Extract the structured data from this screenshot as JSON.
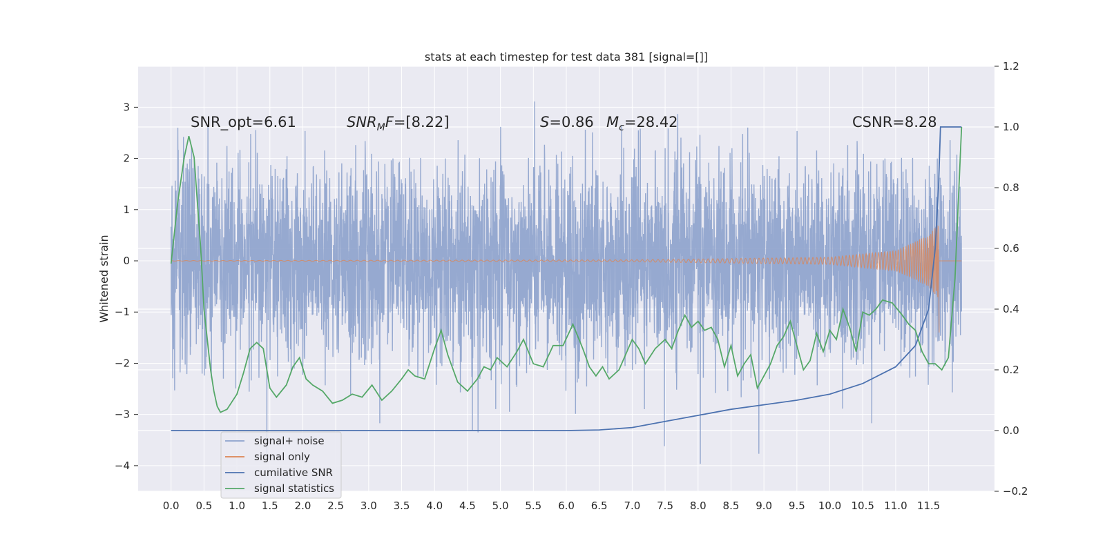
{
  "chart_data": {
    "type": "line",
    "title": "stats at each timestep for test data 381 [signal=[]]",
    "ylabel": "Whitened strain",
    "xlim": [
      -0.5,
      12.5
    ],
    "ylim": [
      -4.5,
      3.8
    ],
    "y2lim": [
      -0.2,
      1.2
    ],
    "x_ticks": [
      0.0,
      0.5,
      1.0,
      1.5,
      2.0,
      2.5,
      3.0,
      3.5,
      4.0,
      4.5,
      5.0,
      5.5,
      6.0,
      6.5,
      7.0,
      7.5,
      8.0,
      8.5,
      9.0,
      9.5,
      10.0,
      10.5,
      11.0,
      11.5
    ],
    "x_tick_labels": [
      "0.0",
      "0.5",
      "1.0",
      "1.5",
      "2.0",
      "2.5",
      "3.0",
      "3.5",
      "4.0",
      "4.5",
      "5.0",
      "5.5",
      "6.0",
      "6.5",
      "7.0",
      "7.5",
      "8.0",
      "8.5",
      "9.0",
      "9.5",
      "10.0",
      "10.5",
      "11.0",
      "11.5"
    ],
    "y_ticks": [
      3,
      2,
      1,
      0,
      -1,
      -2,
      -3,
      -4
    ],
    "y_tick_labels": [
      "3",
      "2",
      "1",
      "0",
      "−1",
      "−2",
      "−3",
      "−4"
    ],
    "y2_ticks": [
      1.2,
      1.0,
      0.8,
      0.6,
      0.4,
      0.2,
      0.0,
      -0.2
    ],
    "y2_tick_labels": [
      "1.2",
      "1.0",
      "0.8",
      "0.6",
      "0.4",
      "0.2",
      "0.0",
      "−0.2"
    ],
    "grid": true,
    "legend_position": "lower-left",
    "annotations": {
      "snr_opt": "SNR_opt=6.61",
      "snr_mf_main": "SNR",
      "snr_mf_sub": "M",
      "snr_mf_rest": "F=[8.22]",
      "s_main": "S",
      "s_rest": "=0.86",
      "mc_main": "M",
      "mc_sub": "c",
      "mc_rest": "=28.42",
      "csnr": "CSNR=8.28"
    },
    "series": [
      {
        "name": "signal+ noise",
        "color": "#8da2cc",
        "kind": "noise",
        "x_range": [
          0.0,
          12.0
        ],
        "envelope": [
          [
            0.0,
            2.0,
            -2.2
          ],
          [
            3.0,
            2.3,
            -2.3
          ],
          [
            8.0,
            2.6,
            -2.5
          ],
          [
            12.0,
            2.7,
            -2.6
          ]
        ]
      },
      {
        "name": "signal only",
        "color": "#dd8452",
        "kind": "chirp",
        "x_range": [
          0.0,
          11.65
        ],
        "amplitude_points": [
          [
            0.0,
            0.005
          ],
          [
            7.0,
            0.02
          ],
          [
            10.0,
            0.07
          ],
          [
            11.0,
            0.2
          ],
          [
            11.5,
            0.5
          ],
          [
            11.65,
            0.75
          ]
        ]
      },
      {
        "name": "cumilative SNR",
        "color": "#4c72b0",
        "axis": "right",
        "points": [
          [
            0.0,
            0.0
          ],
          [
            6.0,
            0.0
          ],
          [
            6.5,
            0.002
          ],
          [
            7.0,
            0.01
          ],
          [
            7.5,
            0.03
          ],
          [
            8.0,
            0.05
          ],
          [
            8.5,
            0.07
          ],
          [
            9.0,
            0.085
          ],
          [
            9.5,
            0.1
          ],
          [
            10.0,
            0.12
          ],
          [
            10.5,
            0.155
          ],
          [
            11.0,
            0.21
          ],
          [
            11.3,
            0.28
          ],
          [
            11.5,
            0.4
          ],
          [
            11.6,
            0.6
          ],
          [
            11.65,
            0.8
          ],
          [
            11.68,
            1.0
          ],
          [
            12.0,
            1.0
          ]
        ]
      },
      {
        "name": "signal statistics",
        "color": "#55a868",
        "axis": "right",
        "points": [
          [
            0.0,
            0.55
          ],
          [
            0.1,
            0.75
          ],
          [
            0.2,
            0.9
          ],
          [
            0.27,
            0.97
          ],
          [
            0.35,
            0.9
          ],
          [
            0.45,
            0.6
          ],
          [
            0.5,
            0.4
          ],
          [
            0.55,
            0.3
          ],
          [
            0.6,
            0.2
          ],
          [
            0.65,
            0.13
          ],
          [
            0.7,
            0.08
          ],
          [
            0.75,
            0.06
          ],
          [
            0.85,
            0.07
          ],
          [
            1.0,
            0.12
          ],
          [
            1.1,
            0.19
          ],
          [
            1.2,
            0.27
          ],
          [
            1.3,
            0.29
          ],
          [
            1.4,
            0.27
          ],
          [
            1.5,
            0.14
          ],
          [
            1.6,
            0.11
          ],
          [
            1.75,
            0.15
          ],
          [
            1.85,
            0.21
          ],
          [
            1.95,
            0.24
          ],
          [
            2.05,
            0.17
          ],
          [
            2.15,
            0.15
          ],
          [
            2.3,
            0.13
          ],
          [
            2.45,
            0.09
          ],
          [
            2.6,
            0.1
          ],
          [
            2.75,
            0.12
          ],
          [
            2.9,
            0.11
          ],
          [
            3.05,
            0.15
          ],
          [
            3.2,
            0.1
          ],
          [
            3.35,
            0.13
          ],
          [
            3.5,
            0.17
          ],
          [
            3.6,
            0.2
          ],
          [
            3.7,
            0.18
          ],
          [
            3.85,
            0.17
          ],
          [
            4.0,
            0.27
          ],
          [
            4.1,
            0.33
          ],
          [
            4.2,
            0.25
          ],
          [
            4.35,
            0.16
          ],
          [
            4.5,
            0.13
          ],
          [
            4.65,
            0.17
          ],
          [
            4.75,
            0.21
          ],
          [
            4.85,
            0.2
          ],
          [
            4.95,
            0.24
          ],
          [
            5.1,
            0.21
          ],
          [
            5.25,
            0.26
          ],
          [
            5.35,
            0.3
          ],
          [
            5.5,
            0.22
          ],
          [
            5.65,
            0.21
          ],
          [
            5.8,
            0.28
          ],
          [
            5.95,
            0.28
          ],
          [
            6.1,
            0.35
          ],
          [
            6.25,
            0.27
          ],
          [
            6.35,
            0.21
          ],
          [
            6.45,
            0.18
          ],
          [
            6.55,
            0.21
          ],
          [
            6.65,
            0.17
          ],
          [
            6.8,
            0.2
          ],
          [
            6.9,
            0.25
          ],
          [
            7.0,
            0.3
          ],
          [
            7.1,
            0.27
          ],
          [
            7.2,
            0.22
          ],
          [
            7.35,
            0.27
          ],
          [
            7.5,
            0.3
          ],
          [
            7.6,
            0.27
          ],
          [
            7.7,
            0.33
          ],
          [
            7.8,
            0.38
          ],
          [
            7.9,
            0.34
          ],
          [
            8.0,
            0.36
          ],
          [
            8.1,
            0.33
          ],
          [
            8.2,
            0.34
          ],
          [
            8.3,
            0.3
          ],
          [
            8.4,
            0.21
          ],
          [
            8.5,
            0.28
          ],
          [
            8.6,
            0.18
          ],
          [
            8.7,
            0.22
          ],
          [
            8.8,
            0.25
          ],
          [
            8.9,
            0.14
          ],
          [
            9.0,
            0.18
          ],
          [
            9.1,
            0.22
          ],
          [
            9.2,
            0.28
          ],
          [
            9.3,
            0.31
          ],
          [
            9.4,
            0.36
          ],
          [
            9.5,
            0.28
          ],
          [
            9.6,
            0.2
          ],
          [
            9.7,
            0.23
          ],
          [
            9.8,
            0.32
          ],
          [
            9.9,
            0.26
          ],
          [
            10.0,
            0.33
          ],
          [
            10.1,
            0.3
          ],
          [
            10.2,
            0.4
          ],
          [
            10.3,
            0.34
          ],
          [
            10.4,
            0.26
          ],
          [
            10.5,
            0.39
          ],
          [
            10.6,
            0.38
          ],
          [
            10.7,
            0.4
          ],
          [
            10.8,
            0.43
          ],
          [
            10.95,
            0.42
          ],
          [
            11.1,
            0.38
          ],
          [
            11.2,
            0.35
          ],
          [
            11.3,
            0.33
          ],
          [
            11.4,
            0.26
          ],
          [
            11.5,
            0.22
          ],
          [
            11.6,
            0.22
          ],
          [
            11.7,
            0.2
          ],
          [
            11.8,
            0.24
          ],
          [
            11.9,
            0.5
          ],
          [
            11.95,
            0.75
          ],
          [
            12.0,
            1.0
          ]
        ]
      }
    ]
  }
}
